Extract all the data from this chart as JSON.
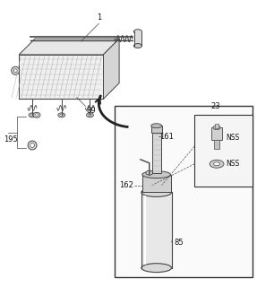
{
  "bg_color": "#ffffff",
  "line_color": "#444444",
  "label_color": "#111111",
  "figsize": [
    2.87,
    3.2
  ],
  "dpi": 100
}
